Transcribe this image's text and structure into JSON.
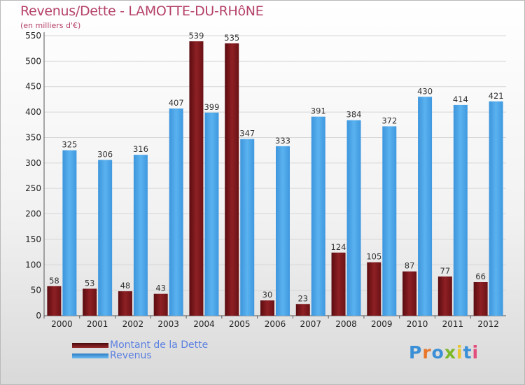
{
  "title": "Revenus/Dette - LAMOTTE-DU-RHôNE",
  "unit": "(en milliers d'€)",
  "logo": {
    "text": "Proxiti",
    "colors": [
      "#3a8fd6",
      "#e8772c",
      "#3a8fd6",
      "#7bb826",
      "#e8c52c",
      "#3a8fd6",
      "#e34d7c"
    ]
  },
  "colors": {
    "debt": "#7a1418",
    "revenue": "#4aa3e8",
    "title": "#b5416a"
  },
  "chart_data": {
    "type": "bar",
    "title": "Revenus/Dette - LAMOTTE-DU-RHôNE",
    "ylabel": "(en milliers d'€)",
    "categories": [
      "2000",
      "2001",
      "2002",
      "2003",
      "2004",
      "2005",
      "2006",
      "2007",
      "2008",
      "2009",
      "2010",
      "2011",
      "2012"
    ],
    "series": [
      {
        "name": "Montant de la Dette",
        "values": [
          58,
          53,
          48,
          43,
          539,
          535,
          30,
          23,
          124,
          105,
          87,
          77,
          66
        ]
      },
      {
        "name": "Revenus",
        "values": [
          325,
          306,
          316,
          407,
          399,
          347,
          333,
          391,
          384,
          372,
          430,
          414,
          421
        ]
      }
    ],
    "ylim": [
      0,
      550
    ],
    "yticks": [
      0,
      50,
      100,
      150,
      200,
      250,
      300,
      350,
      400,
      450,
      500,
      550
    ],
    "grid": true,
    "legend": "bottom-left"
  }
}
